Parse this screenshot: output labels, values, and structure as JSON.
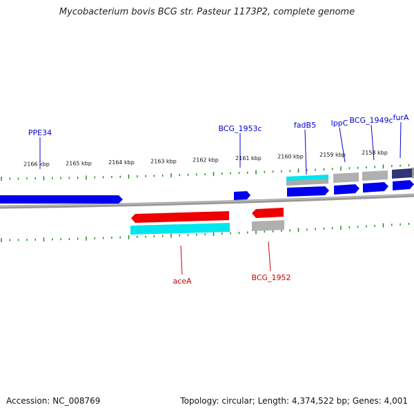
{
  "title": "Mycobacterium bovis BCG str. Pasteur 1173P2, complete genome",
  "accession_text": "Accession: NC_008769",
  "summary_text": "Topology: circular; Length: 4,374,522 bp; Genes: 4,001",
  "scale_labels": [
    "2166 kbp",
    "2165 kbp",
    "2164 kbp",
    "2163 kbp",
    "2162 kbp",
    "2161 kbp",
    "2160 kbp",
    "2159 kbp",
    "2158 kbp"
  ],
  "genes_forward": [
    {
      "name": "PPE34",
      "color": "#0000cc"
    },
    {
      "name": "BCG_1953c",
      "color": "#0000cc"
    },
    {
      "name": "fadB5",
      "color": "#0000cc"
    },
    {
      "name": "lppC",
      "color": "#0000cc"
    },
    {
      "name": "BCG_1949c",
      "color": "#0000cc"
    },
    {
      "name": "furA",
      "color": "#0000cc"
    }
  ],
  "genes_reverse": [
    {
      "name": "aceA",
      "color": "#cc0000"
    },
    {
      "name": "BCG_1952",
      "color": "#cc0000"
    }
  ],
  "colors": {
    "backbone": "#888888",
    "tick": "#228b22",
    "cds_forward": "#0000ee",
    "cds_reverse": "#ee0000",
    "gene_track": "#00e5ee",
    "gene_track_gray": "#b0b0b0",
    "gene_track_dark": "#333377"
  }
}
